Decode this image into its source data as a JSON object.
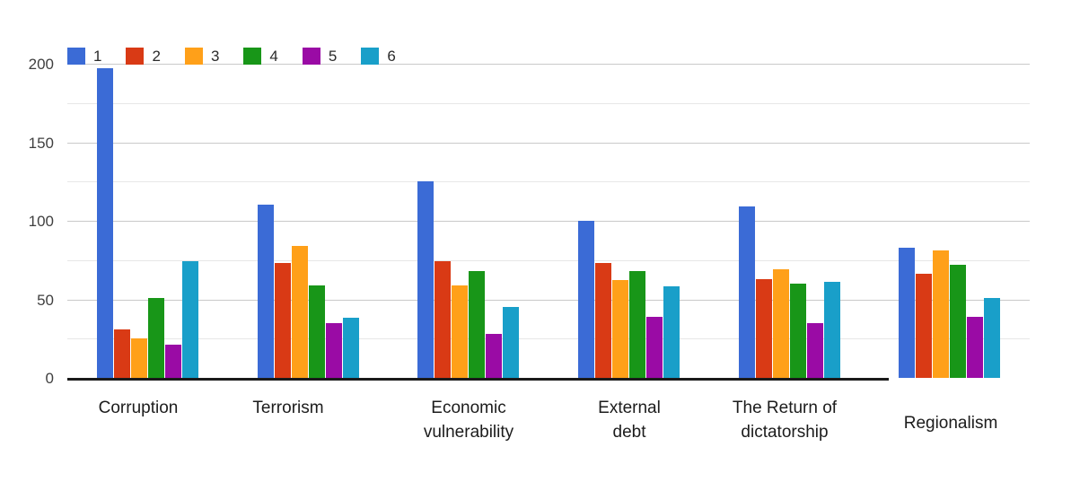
{
  "chart_data": {
    "type": "bar",
    "title": "",
    "xlabel": "",
    "ylabel": "",
    "categories": [
      "Corruption",
      "Terrorism",
      "Economic vulnerability",
      "External debt",
      "The Return of dictatorship",
      "Regionalism"
    ],
    "category_label_lines": [
      [
        "Corruption"
      ],
      [
        "Terrorism"
      ],
      [
        "Economic",
        "vulnerability"
      ],
      [
        "External",
        "debt"
      ],
      [
        "The Return of",
        "dictatorship"
      ],
      [
        "Regionalism"
      ]
    ],
    "series": [
      {
        "name": "1",
        "color": "#3B6BD6",
        "values": [
          197,
          110,
          125,
          100,
          109,
          83
        ]
      },
      {
        "name": "2",
        "color": "#D93A15",
        "values": [
          31,
          73,
          74,
          73,
          63,
          66
        ]
      },
      {
        "name": "3",
        "color": "#FFA019",
        "values": [
          25,
          84,
          59,
          62,
          69,
          81
        ]
      },
      {
        "name": "4",
        "color": "#189618",
        "values": [
          51,
          59,
          68,
          68,
          60,
          72
        ]
      },
      {
        "name": "5",
        "color": "#9A0BA5",
        "values": [
          21,
          35,
          28,
          39,
          35,
          39
        ]
      },
      {
        "name": "6",
        "color": "#199FC9",
        "values": [
          74,
          38,
          45,
          58,
          61,
          51
        ]
      }
    ],
    "y_ticks": [
      0,
      50,
      100,
      150,
      200
    ],
    "y_minor_ticks": [
      25,
      75,
      125,
      175
    ],
    "ylim": [
      0,
      200
    ],
    "grid": true,
    "legend_position": "top-left",
    "legend_labels": [
      "1",
      "2",
      "3",
      "4",
      "5",
      "6"
    ]
  },
  "colors": {
    "background": "#ffffff",
    "axis_line": "#1a1a1a",
    "major_gridline": "#c9c9c9",
    "minor_gridline": "#e7e7e7",
    "tick_label": "#3f3f3f",
    "category_label": "#1c1c1c",
    "legend_label": "#2b2b2b"
  }
}
